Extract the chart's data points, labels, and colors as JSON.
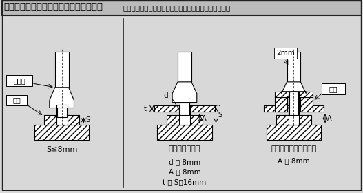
{
  "title_bold": "【図１】プレス装置の本質安全化の事例",
  "title_normal": "（出典：これからの安全管理；中央労働災害防止協会）",
  "bg_color": "#d8d8d8",
  "diagram_bg": "#f0f0f0",
  "border_color": "#222222",
  "label1": "S≦8mm",
  "label2": "ストリッパー付",
  "label3": "ストリッパーと囲い付",
  "label2_sub": "d ＜ 8mm\nA ＜ 8mm\nt ＞ S－16mm",
  "label3_sub": "A ＜ 8mm",
  "punch_label": "ポンチ",
  "die_label": "ダイ",
  "enclosure_label": "囲い",
  "S_label": "S",
  "A_label": "A",
  "t_label": "t",
  "d_label": "d",
  "mm2_label": "2mm"
}
